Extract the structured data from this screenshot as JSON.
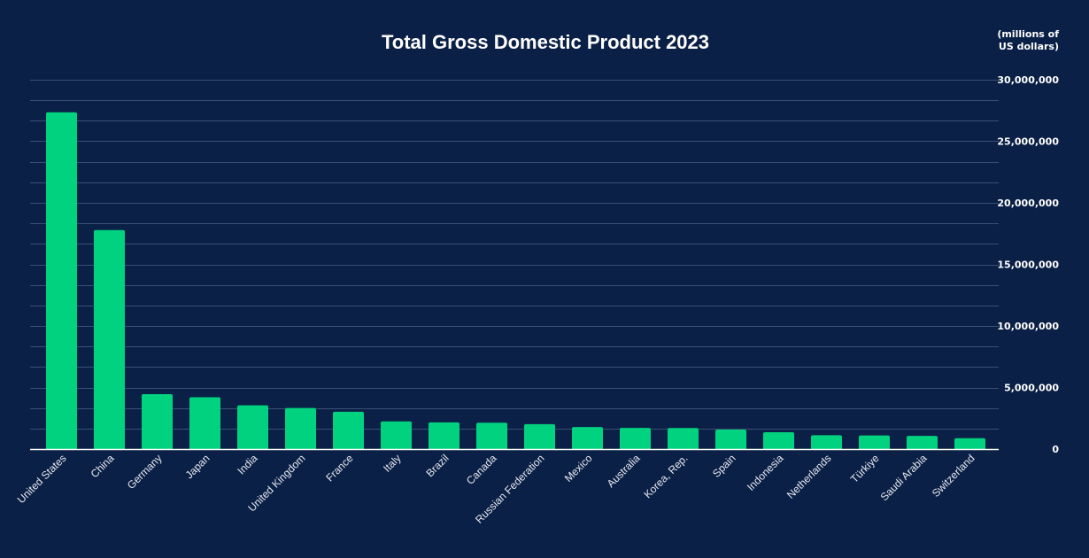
{
  "chart_data": {
    "type": "bar",
    "title": "Total Gross Domestic Product 2023",
    "ylabel": "(millions of US dollars)",
    "ylabel_lines": [
      "(millions of",
      "US dollars)"
    ],
    "xlabel": "",
    "ylim": [
      0,
      30000000
    ],
    "y_axis_position": "right",
    "yticks": [
      0,
      5000000,
      10000000,
      15000000,
      20000000,
      25000000,
      30000000
    ],
    "ytick_labels": [
      "0",
      "5,000,000",
      "10,000,000",
      "15,000,000",
      "20,000,000",
      "25,000,000",
      "30,000,000"
    ],
    "grid": true,
    "categories": [
      "United States",
      "China",
      "Germany",
      "Japan",
      "India",
      "United Kingdom",
      "France",
      "Italy",
      "Brazil",
      "Canada",
      "Russian Federation",
      "Mexico",
      "Australia",
      "Korea, Rep.",
      "Spain",
      "Indonesia",
      "Netherlands",
      "Türkiye",
      "Saudi Arabia",
      "Switzerland"
    ],
    "values": [
      27360000,
      17790000,
      4460000,
      4210000,
      3550000,
      3340000,
      3030000,
      2250000,
      2170000,
      2140000,
      2020000,
      1790000,
      1720000,
      1710000,
      1580000,
      1370000,
      1120000,
      1110000,
      1070000,
      880000
    ],
    "colors": {
      "background": "#0b2046",
      "bar": "#00d27f",
      "grid": "#3a4f72",
      "axis": "#ffffff",
      "text": "#ffffff"
    }
  }
}
